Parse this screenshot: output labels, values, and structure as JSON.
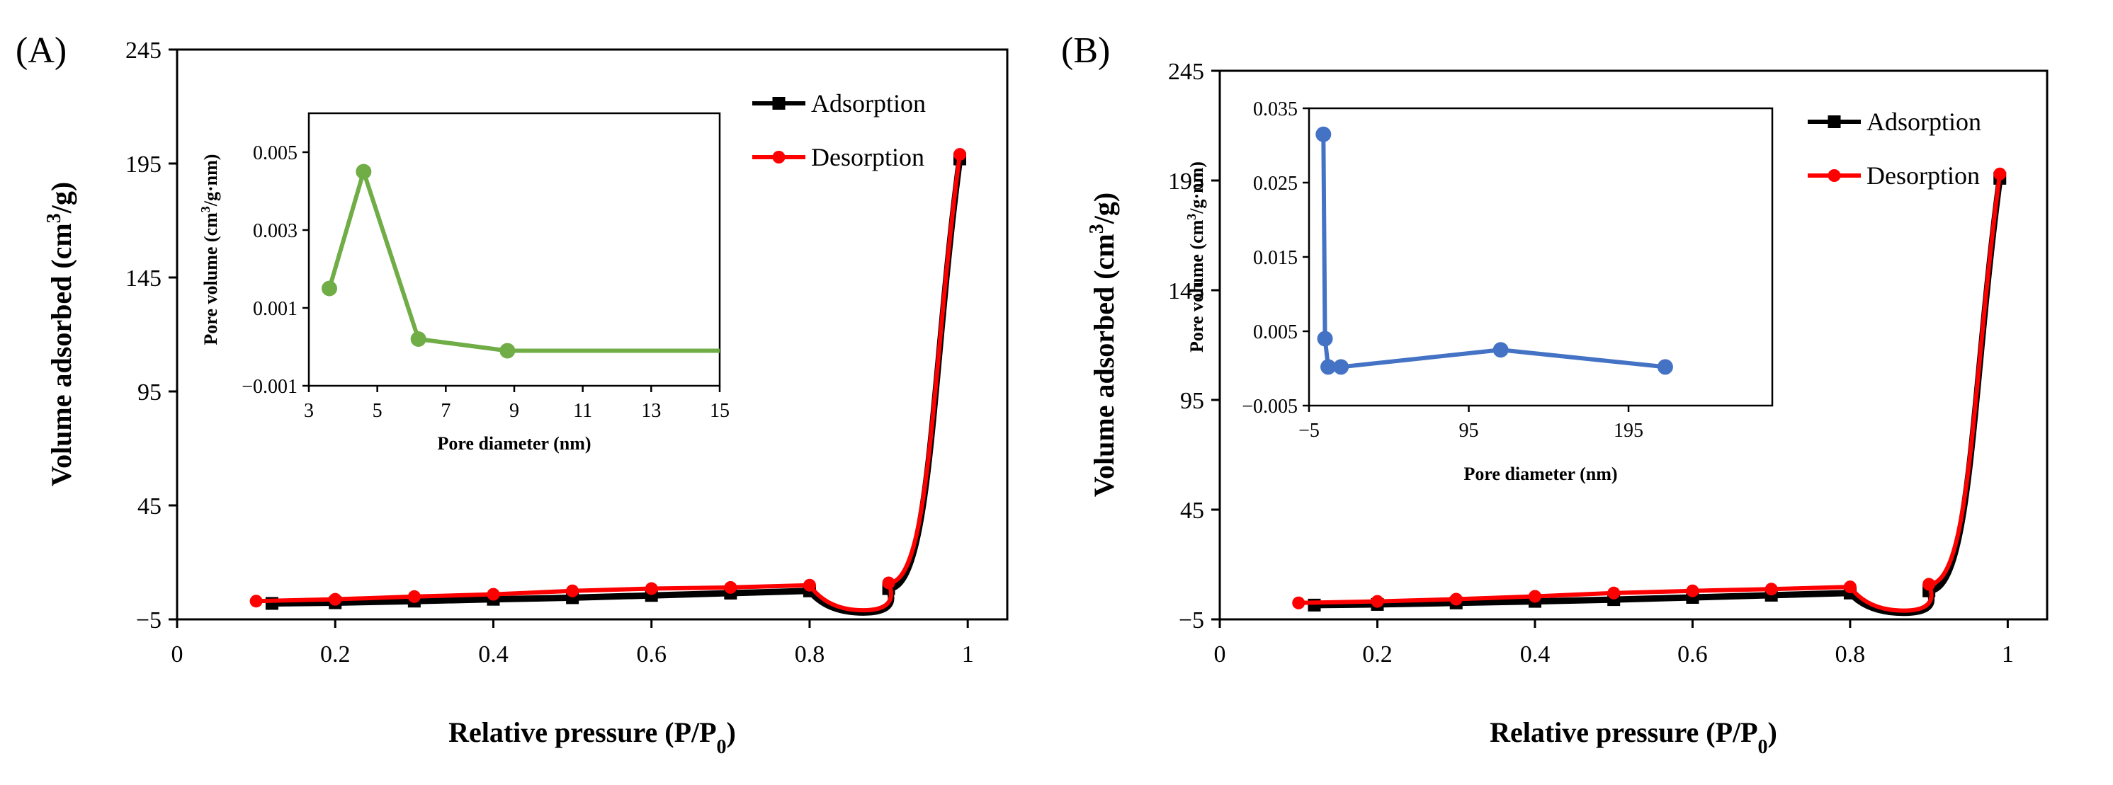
{
  "chart_data": [
    {
      "type": "line",
      "panel_label": "(A)",
      "xlabel": "Relative pressure (P/P",
      "xlabel_sub": "0",
      "xlabel_end": ")",
      "ylabel": "Volume adsorbed (cm",
      "ylabel_sup": "3",
      "ylabel_end": "/g)",
      "xlim": [
        0,
        1.05
      ],
      "ylim": [
        -5,
        245
      ],
      "xticks": [
        "0",
        "0.2",
        "0.4",
        "0.6",
        "0.8",
        "1"
      ],
      "xtick_values": [
        0,
        0.2,
        0.4,
        0.6,
        0.8,
        1
      ],
      "yticks": [
        "−5",
        "45",
        "95",
        "145",
        "195",
        "245"
      ],
      "ytick_values": [
        -5,
        45,
        95,
        145,
        195,
        245
      ],
      "legend": "top-right",
      "grid": false,
      "series": [
        {
          "name": "Adsorption",
          "color": "#000000",
          "marker": "square",
          "x": [
            0.12,
            0.2,
            0.3,
            0.4,
            0.5,
            0.6,
            0.7,
            0.8,
            0.9,
            0.99
          ],
          "y": [
            2,
            2.3,
            3,
            3.8,
            4.5,
            5.5,
            6.5,
            7.5,
            8.5,
            197
          ]
        },
        {
          "name": "Desorption",
          "color": "#ff0000",
          "marker": "circle",
          "x": [
            0.1,
            0.2,
            0.3,
            0.4,
            0.5,
            0.6,
            0.7,
            0.8,
            0.9,
            0.99
          ],
          "y": [
            3,
            3.8,
            5,
            6,
            7.5,
            8.5,
            9,
            10,
            11,
            199
          ]
        }
      ],
      "inset": {
        "type": "line",
        "xlabel": "Pore diameter (nm)",
        "ylabel": "Pore volume (cm",
        "ylabel_sup": "3",
        "ylabel_end": "/g·nm)",
        "xlim": [
          3,
          15
        ],
        "ylim": [
          -0.001,
          0.006
        ],
        "xticks": [
          "3",
          "5",
          "7",
          "9",
          "11",
          "13",
          "15"
        ],
        "xtick_values": [
          3,
          5,
          7,
          9,
          11,
          13,
          15
        ],
        "yticks": [
          "−0.001",
          "0.001",
          "0.003",
          "0.005"
        ],
        "ytick_values": [
          -0.001,
          0.001,
          0.003,
          0.005
        ],
        "color": "#70ad47",
        "x": [
          3.6,
          4.6,
          6.2,
          8.8
        ],
        "y": [
          0.0015,
          0.0045,
          0.0002,
          -0.0001
        ],
        "tail_x": 15,
        "tail_y": -0.0001
      }
    },
    {
      "type": "line",
      "panel_label": "(B)",
      "xlabel": "Relative pressure (P/P",
      "xlabel_sub": "0",
      "xlabel_end": ")",
      "ylabel": "Volume adsorbed (cm",
      "ylabel_sup": "3",
      "ylabel_end": "/g)",
      "xlim": [
        0,
        1.05
      ],
      "ylim": [
        -5,
        245
      ],
      "xticks": [
        "0",
        "0.2",
        "0.4",
        "0.6",
        "0.8",
        "1"
      ],
      "xtick_values": [
        0,
        0.2,
        0.4,
        0.6,
        0.8,
        1
      ],
      "yticks": [
        "−5",
        "45",
        "95",
        "145",
        "195",
        "245"
      ],
      "ytick_values": [
        -5,
        45,
        95,
        145,
        195,
        245
      ],
      "legend": "top-right",
      "grid": false,
      "series": [
        {
          "name": "Adsorption",
          "color": "#000000",
          "marker": "square",
          "x": [
            0.12,
            0.2,
            0.3,
            0.4,
            0.5,
            0.6,
            0.7,
            0.8,
            0.9,
            0.99
          ],
          "y": [
            1.5,
            1.8,
            2.5,
            3.2,
            4,
            5,
            6,
            7,
            8,
            196
          ]
        },
        {
          "name": "Desorption",
          "color": "#ff0000",
          "marker": "circle",
          "x": [
            0.1,
            0.2,
            0.3,
            0.4,
            0.5,
            0.6,
            0.7,
            0.8,
            0.9,
            0.99
          ],
          "y": [
            2.5,
            3.2,
            4.2,
            5.5,
            7,
            8,
            8.8,
            9.8,
            11,
            198
          ]
        }
      ],
      "inset": {
        "type": "line",
        "xlabel": "Pore diameter (nm)",
        "ylabel": "Pore volume (cm",
        "ylabel_sup": "3",
        "ylabel_end": "/g·nm)",
        "xlim": [
          -5,
          285
        ],
        "ylim": [
          -0.005,
          0.035
        ],
        "xticks": [
          "−5",
          "95",
          "195"
        ],
        "xtick_values": [
          -5,
          95,
          195
        ],
        "yticks": [
          "−0.005",
          "0.005",
          "0.015",
          "0.025",
          "0.035"
        ],
        "ytick_values": [
          -0.005,
          0.005,
          0.015,
          0.025,
          0.035
        ],
        "color": "#4472c4",
        "x": [
          4,
          5,
          7,
          15,
          115,
          218
        ],
        "y": [
          0.0315,
          0.004,
          0.0002,
          0.0002,
          0.0025,
          0.0002
        ]
      }
    }
  ]
}
